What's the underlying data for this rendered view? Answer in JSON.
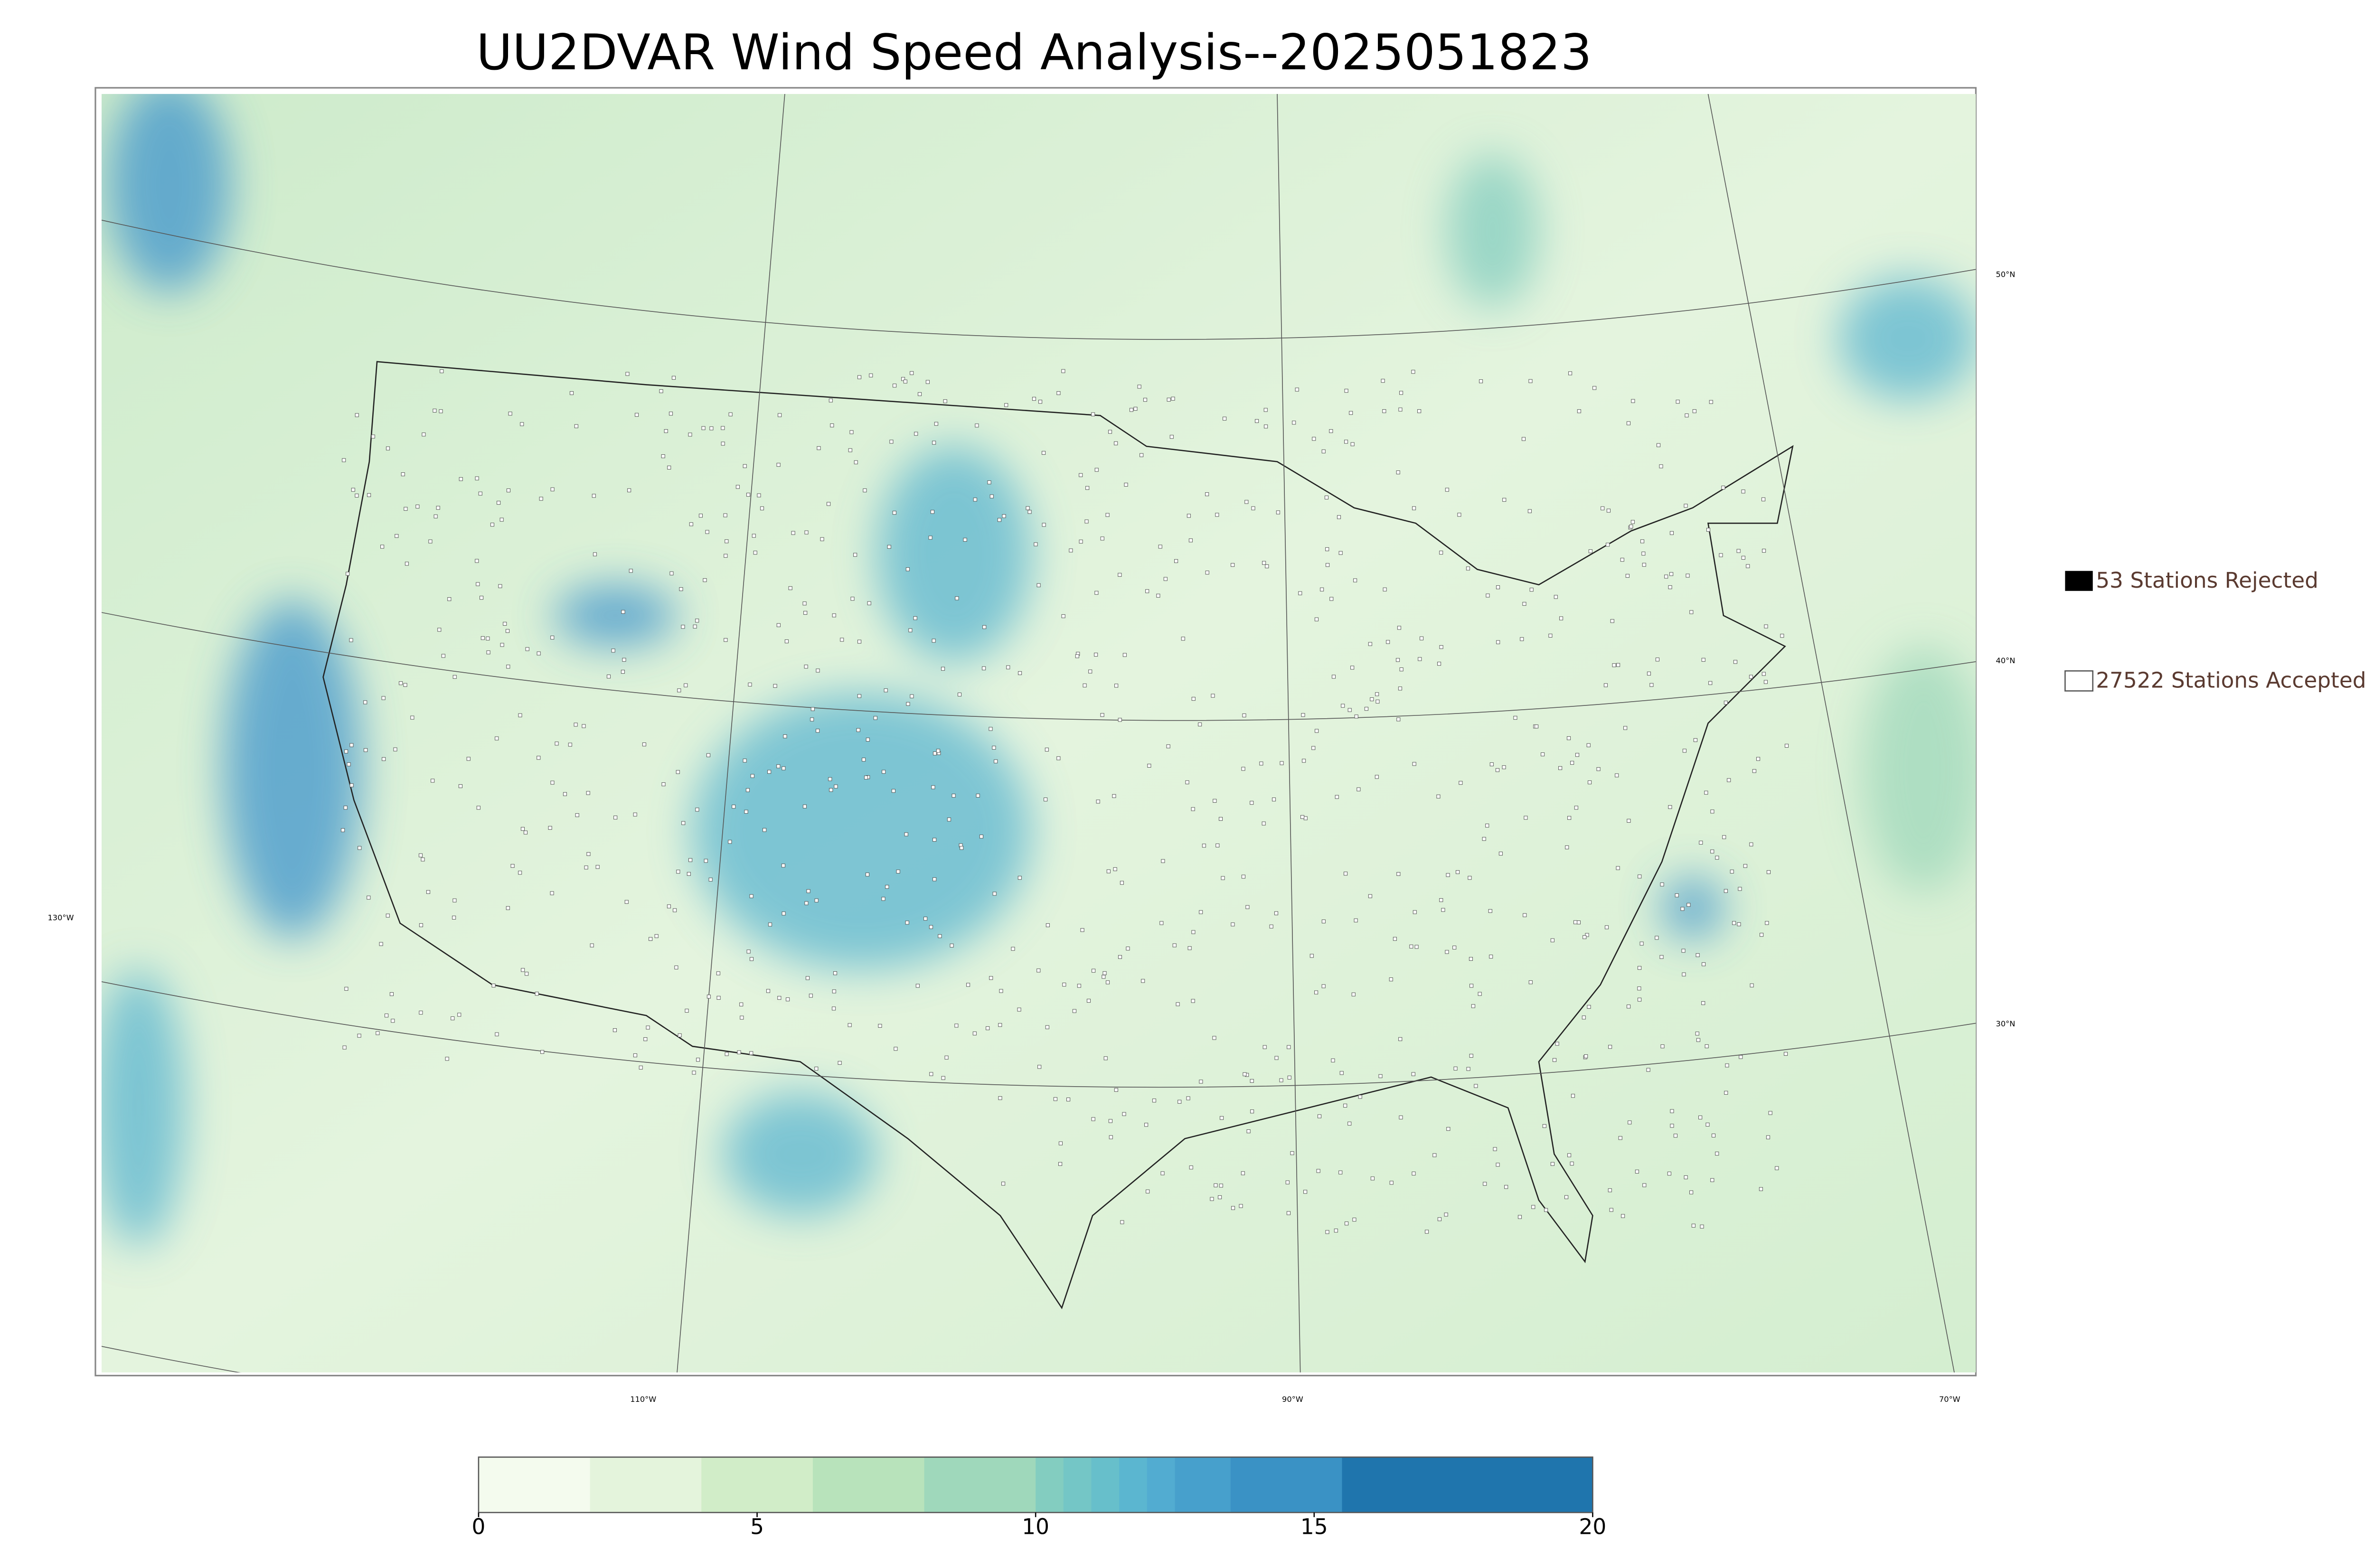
{
  "title": "UU2DVAR Wind Speed Analysis--2025051823",
  "legend": {
    "rejected": "53 Stations Rejected",
    "accepted": "27522 Stations Accepted"
  },
  "latitude_labels": [
    "50°N",
    "40°N",
    "30°N"
  ],
  "longitude_labels": [
    "130°W",
    "110°W",
    "90°W",
    "70°W"
  ],
  "colorbar": {
    "lim": [
      0,
      20
    ],
    "ticks": [
      0,
      5,
      10,
      15,
      20
    ],
    "bounds": [
      0,
      2,
      4,
      6,
      8,
      10,
      10.5,
      11,
      11.5,
      12,
      12.5,
      13.5,
      15.5,
      20
    ],
    "colors": [
      "#f4fbee",
      "#e4f4dc",
      "#d1edc8",
      "#b8e3bb",
      "#9fd8bb",
      "#83cdc0",
      "#74c6c6",
      "#67bfcb",
      "#5bb6d0",
      "#52acd1",
      "#47a0cc",
      "#3a92c5",
      "#1f75ad"
    ]
  }
}
